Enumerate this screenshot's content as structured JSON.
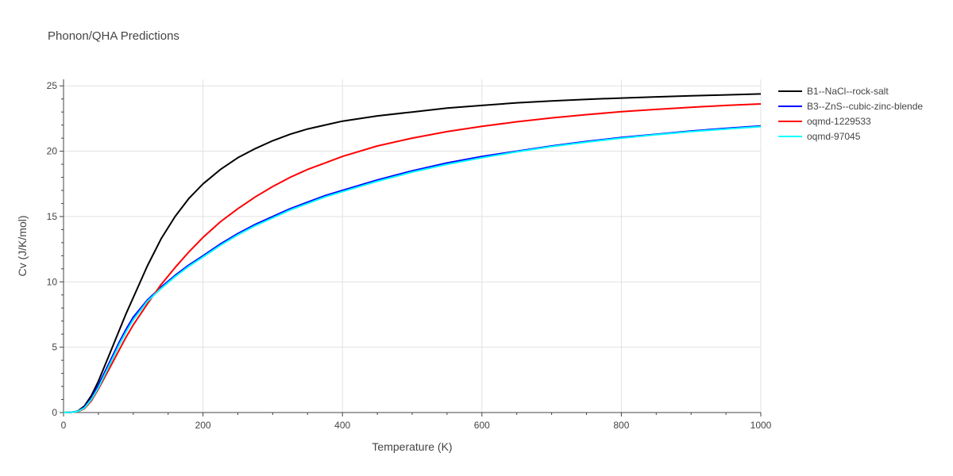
{
  "chart_data": {
    "type": "line",
    "title": "Phonon/QHA Predictions",
    "xlabel": "Temperature (K)",
    "ylabel": "Cv (J/K/mol)",
    "xlim": [
      0,
      1000
    ],
    "ylim": [
      0,
      25.5
    ],
    "xticks": [
      0,
      200,
      400,
      600,
      800,
      1000
    ],
    "yticks": [
      0,
      5,
      10,
      15,
      20,
      25
    ],
    "grid": true,
    "legend_position": "top-right",
    "series": [
      {
        "name": "B1--NaCl--rock-salt",
        "color": "#000000",
        "x": [
          0,
          10,
          20,
          30,
          40,
          50,
          60,
          70,
          80,
          90,
          100,
          120,
          140,
          160,
          180,
          200,
          225,
          250,
          275,
          300,
          325,
          350,
          375,
          400,
          450,
          500,
          550,
          600,
          650,
          700,
          750,
          800,
          850,
          900,
          950,
          1000
        ],
        "y": [
          0,
          0.02,
          0.1,
          0.5,
          1.3,
          2.4,
          3.7,
          5.0,
          6.3,
          7.6,
          8.8,
          11.2,
          13.3,
          15.0,
          16.4,
          17.5,
          18.6,
          19.5,
          20.2,
          20.8,
          21.3,
          21.7,
          22.0,
          22.3,
          22.7,
          23.0,
          23.3,
          23.5,
          23.7,
          23.85,
          23.97,
          24.07,
          24.16,
          24.24,
          24.31,
          24.38
        ]
      },
      {
        "name": "B3--ZnS--cubic-zinc-blende",
        "color": "#0000ff",
        "x": [
          0,
          10,
          20,
          30,
          40,
          50,
          60,
          70,
          80,
          90,
          100,
          120,
          140,
          160,
          180,
          200,
          225,
          250,
          275,
          300,
          325,
          350,
          375,
          400,
          450,
          500,
          550,
          600,
          650,
          700,
          750,
          800,
          850,
          900,
          950,
          1000
        ],
        "y": [
          0,
          0.02,
          0.08,
          0.4,
          1.1,
          2.1,
          3.2,
          4.3,
          5.4,
          6.4,
          7.3,
          8.6,
          9.6,
          10.5,
          11.3,
          12.0,
          12.9,
          13.7,
          14.4,
          15.0,
          15.6,
          16.1,
          16.6,
          17.0,
          17.8,
          18.5,
          19.1,
          19.6,
          20.0,
          20.4,
          20.75,
          21.05,
          21.3,
          21.55,
          21.75,
          21.93
        ]
      },
      {
        "name": "oqmd-1229533",
        "color": "#ff0000",
        "x": [
          0,
          10,
          20,
          30,
          40,
          50,
          60,
          70,
          80,
          90,
          100,
          120,
          140,
          160,
          180,
          200,
          225,
          250,
          275,
          300,
          325,
          350,
          375,
          400,
          450,
          500,
          550,
          600,
          650,
          700,
          750,
          800,
          850,
          900,
          950,
          1000
        ],
        "y": [
          0,
          0.01,
          0.06,
          0.3,
          0.9,
          1.8,
          2.8,
          3.8,
          4.8,
          5.8,
          6.7,
          8.3,
          9.8,
          11.1,
          12.3,
          13.4,
          14.6,
          15.6,
          16.5,
          17.3,
          18.0,
          18.6,
          19.1,
          19.6,
          20.4,
          21.0,
          21.5,
          21.9,
          22.25,
          22.55,
          22.8,
          23.02,
          23.2,
          23.36,
          23.5,
          23.62
        ]
      },
      {
        "name": "oqmd-97045",
        "color": "#00ffff",
        "x": [
          0,
          10,
          20,
          30,
          40,
          50,
          60,
          70,
          80,
          90,
          100,
          120,
          140,
          160,
          180,
          200,
          225,
          250,
          275,
          300,
          325,
          350,
          375,
          400,
          450,
          500,
          550,
          600,
          650,
          700,
          750,
          800,
          850,
          900,
          950,
          1000
        ],
        "y": [
          0,
          0.02,
          0.07,
          0.35,
          1.0,
          1.9,
          3.0,
          4.1,
          5.2,
          6.2,
          7.1,
          8.5,
          9.5,
          10.4,
          11.2,
          11.9,
          12.8,
          13.6,
          14.3,
          14.9,
          15.5,
          16.0,
          16.5,
          16.9,
          17.7,
          18.4,
          19.0,
          19.5,
          19.95,
          20.35,
          20.7,
          21.0,
          21.27,
          21.5,
          21.7,
          21.88
        ]
      }
    ]
  }
}
